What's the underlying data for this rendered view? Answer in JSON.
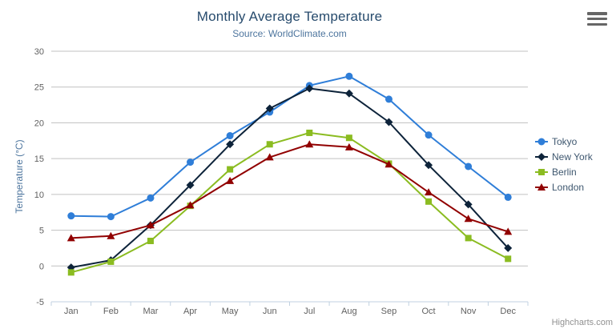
{
  "colors": {
    "background": "#ffffff",
    "title": "#274b6d",
    "subtitle": "#4d759e",
    "axis_title": "#4d759e",
    "axis_label": "#606060",
    "grid": "#c0c0c0",
    "axis_line": "#c0d0e0",
    "legend_text": "#3E576F",
    "credits": "#909090",
    "menu_icon": "#666666"
  },
  "credits_label": "Highcharts.com",
  "chart_data": {
    "type": "line",
    "title": "Monthly Average Temperature",
    "subtitle": "Source: WorldClimate.com",
    "xlabel": "",
    "ylabel": "Temperature (°C)",
    "categories": [
      "Jan",
      "Feb",
      "Mar",
      "Apr",
      "May",
      "Jun",
      "Jul",
      "Aug",
      "Sep",
      "Oct",
      "Nov",
      "Dec"
    ],
    "ylim": [
      -5,
      30
    ],
    "ytick_step": 5,
    "grid": true,
    "legend_position": "right",
    "series": [
      {
        "name": "Tokyo",
        "color": "#2f7ed8",
        "marker": "circle",
        "values": [
          7.0,
          6.9,
          9.5,
          14.5,
          18.2,
          21.5,
          25.2,
          26.5,
          23.3,
          18.3,
          13.9,
          9.6
        ]
      },
      {
        "name": "New York",
        "color": "#0d233a",
        "marker": "diamond",
        "values": [
          -0.2,
          0.8,
          5.7,
          11.3,
          17.0,
          22.0,
          24.8,
          24.1,
          20.1,
          14.1,
          8.6,
          2.5
        ]
      },
      {
        "name": "Berlin",
        "color": "#8bbc21",
        "marker": "square",
        "values": [
          -0.9,
          0.6,
          3.5,
          8.4,
          13.5,
          17.0,
          18.6,
          17.9,
          14.3,
          9.0,
          3.9,
          1.0
        ]
      },
      {
        "name": "London",
        "color": "#910000",
        "marker": "triangle",
        "values": [
          3.9,
          4.2,
          5.7,
          8.5,
          11.9,
          15.2,
          17.0,
          16.6,
          14.2,
          10.3,
          6.6,
          4.8
        ]
      }
    ]
  }
}
